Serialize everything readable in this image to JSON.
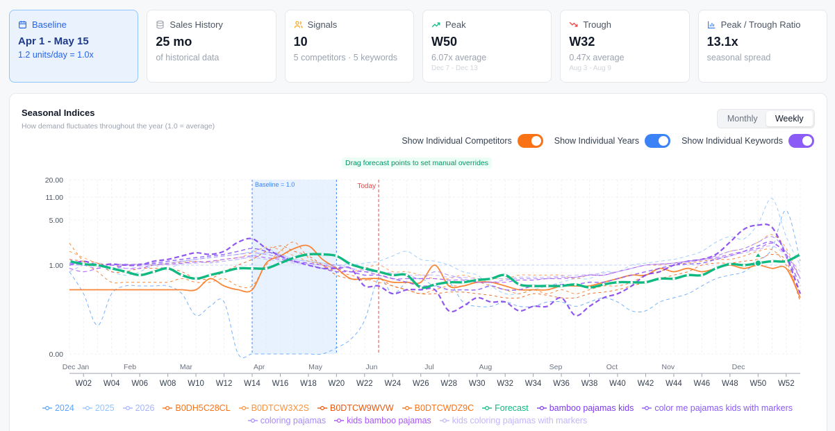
{
  "cards": [
    {
      "icon": "calendar-icon",
      "label": "Baseline",
      "value": "Apr 1 - May 15",
      "sub": "1.2 units/day = 1.0x",
      "tiny": "",
      "active": true
    },
    {
      "icon": "database-icon",
      "label": "Sales History",
      "value": "25 mo",
      "sub": "of historical data",
      "tiny": ""
    },
    {
      "icon": "users-icon",
      "label": "Signals",
      "value": "10",
      "sub": "5 competitors · 5 keywords",
      "tiny": ""
    },
    {
      "icon": "trend-up-icon",
      "label": "Peak",
      "value": "W50",
      "sub": "6.07x average",
      "tiny": "Dec 7 - Dec 13"
    },
    {
      "icon": "trend-down-icon",
      "label": "Trough",
      "value": "W32",
      "sub": "0.47x average",
      "tiny": "Aug 3 - Aug 9"
    },
    {
      "icon": "bar-chart-icon",
      "label": "Peak / Trough Ratio",
      "value": "13.1x",
      "sub": "seasonal spread",
      "tiny": ""
    }
  ],
  "panel": {
    "title": "Seasonal Indices",
    "subtitle": "How demand fluctuates throughout the year (1.0 = average)",
    "view_options": [
      "Monthly",
      "Weekly"
    ],
    "view_selected": "Weekly",
    "hint": "Drag forecast points to set manual overrides"
  },
  "toggles": [
    {
      "label": "Show Individual Competitors",
      "on": true,
      "color": "#f97316"
    },
    {
      "label": "Show Individual Years",
      "on": true,
      "color": "#3b82f6"
    },
    {
      "label": "Show Individual Keywords",
      "on": true,
      "color": "#8b5cf6"
    }
  ],
  "chart_data": {
    "type": "line",
    "y_scale": "symlog",
    "y_ticks": [
      "0.00",
      "1.00",
      "5.00",
      "11.00",
      "20.00"
    ],
    "y_tick_values": [
      0,
      1,
      5,
      11,
      20
    ],
    "month_labels": [
      "Dec Jan",
      "Feb",
      "Mar",
      "Apr",
      "May",
      "Jun",
      "Jul",
      "Aug",
      "Sep",
      "Oct",
      "Nov",
      "Dec"
    ],
    "month_weeks": [
      1.0,
      5.3,
      9.3,
      14.5,
      18.5,
      22.5,
      26.6,
      30.6,
      35.6,
      39.6,
      43.6,
      48.6
    ],
    "week_labels": [
      "W02",
      "W04",
      "W06",
      "W08",
      "W10",
      "W12",
      "W14",
      "W16",
      "W18",
      "W20",
      "W22",
      "W24",
      "W26",
      "W28",
      "W30",
      "W32",
      "W34",
      "W36",
      "W38",
      "W40",
      "W42",
      "W44",
      "W46",
      "W48",
      "W50",
      "W52"
    ],
    "baseline": {
      "label": "Baseline = 1.0",
      "from_week": 14,
      "to_week": 20
    },
    "today": {
      "label": "Today",
      "week": 23
    },
    "override_week": 50,
    "series": [
      {
        "name": "2024",
        "group": "year",
        "color": "#60a5fa",
        "dash": "5,4",
        "width": 1,
        "values": [
          0.9,
          0.6,
          0.25,
          0.6,
          0.7,
          0.7,
          0.7,
          0.7,
          0.6,
          0.35,
          0.45,
          0.5,
          0,
          0,
          0,
          0,
          0,
          0,
          0,
          0.05,
          0.12,
          0.3,
          0.8,
          0.6,
          0.75,
          0.8,
          0.7,
          0.75,
          0.5,
          0.45,
          0.45,
          0.5,
          0.45,
          0.45,
          0.5,
          0.5,
          0.45,
          0.5,
          0.55,
          0.5,
          0.4,
          0.4,
          0.5,
          0.55,
          0.6,
          0.7,
          0.8,
          0.85,
          0.9,
          1.2,
          2.0,
          7.0,
          1.2
        ]
      },
      {
        "name": "2025",
        "group": "year",
        "color": "#93c5fd",
        "dash": "5,4",
        "width": 1,
        "values": [
          1.3,
          1.1,
          1.0,
          0.9,
          0.85,
          0.9,
          1.0,
          1.1,
          1.2,
          1.3,
          1.4,
          1.5,
          1.6,
          1.8,
          2.0,
          1.6,
          1.3,
          1.2,
          1.1,
          1.0,
          1.0,
          1.1,
          1.2,
          1.5,
          1.8,
          1.3,
          1.2,
          1.0,
          0.9,
          0.85,
          0.7,
          0.6,
          0.6,
          0.65,
          0.7,
          0.75,
          0.8,
          0.8,
          0.9,
          0.9,
          1.0,
          1.1,
          1.2,
          1.3,
          1.5,
          1.8,
          2.5,
          3.0,
          2.8,
          4.5,
          10.5,
          3.0,
          1.0
        ]
      },
      {
        "name": "2026",
        "group": "year",
        "color": "#a5b4fc",
        "dash": "5,4",
        "width": 1,
        "values": [
          0.9,
          1.0,
          1.1,
          1.0,
          1.0,
          1.05,
          1.0,
          0.95,
          1.1,
          1.2,
          1.1,
          1.2,
          1.3,
          1.5,
          1.7,
          1.6,
          1.3,
          1.2,
          1.1,
          1.0,
          1.1
        ]
      },
      {
        "name": "B0DH5C28CL",
        "group": "competitor",
        "color": "#f97316",
        "dash": "4,4",
        "width": 1,
        "values": [
          2.4,
          1.2,
          0.9,
          0.75,
          0.75,
          0.75,
          0.75,
          0.75,
          0.8,
          0.75,
          0.75,
          0.8,
          0.7,
          0.7,
          1.0,
          1.8,
          2.5,
          1.4,
          1.0,
          0.9,
          0.85,
          0.8,
          0.75,
          0.7,
          0.65,
          0.6,
          0.65,
          0.7,
          0.7,
          0.75,
          0.7,
          0.65,
          0.6,
          0.65,
          0.6,
          0.65,
          0.6,
          0.65,
          0.7,
          0.7,
          0.75,
          0.85,
          0.9,
          1.0,
          1.1,
          1.2,
          1.3,
          1.3,
          1.5,
          1.8,
          1.9,
          1.0,
          0.6
        ]
      },
      {
        "name": "B0DTCW3X2S",
        "group": "competitor",
        "color": "#fb923c",
        "dash": "4,4",
        "width": 1,
        "values": [
          1.8,
          1.4,
          1.1,
          1.0,
          1.0,
          1.05,
          1.0,
          1.1,
          1.15,
          1.2,
          1.15,
          1.3,
          1.4,
          1.7,
          2.1,
          1.9,
          1.5,
          1.2,
          1.0,
          0.95,
          0.9,
          0.95,
          1.0,
          0.9,
          0.9,
          0.85,
          0.8,
          0.8,
          0.85,
          0.8,
          0.8,
          0.8,
          0.85,
          0.85,
          0.85,
          0.85,
          0.8,
          0.85,
          0.85,
          0.9,
          0.95,
          1.0,
          1.0,
          1.1,
          1.2,
          1.3,
          1.5,
          1.8,
          2.0,
          2.5,
          3.2,
          2.0,
          0.8
        ]
      },
      {
        "name": "B0DTCW9WVW",
        "group": "competitor",
        "color": "#ea580c",
        "dash": "4,4",
        "width": 1,
        "values": [
          1.3,
          1.2,
          1.1,
          0.9,
          0.9,
          0.95,
          0.95,
          0.95,
          0.9,
          0.8,
          0.8,
          0.9,
          1.0,
          1.3,
          1.8,
          2.2,
          1.8,
          1.5,
          1.0,
          0.85,
          0.8,
          0.78,
          0.8,
          0.7,
          0.65,
          0.6,
          0.6,
          0.62,
          0.62,
          0.6,
          0.58,
          0.55,
          0.55,
          0.6,
          0.58,
          0.55,
          0.55,
          0.6,
          0.62,
          0.65,
          0.7,
          0.75,
          0.8,
          0.85,
          0.9,
          1.0,
          1.1,
          1.1,
          1.2,
          1.3,
          1.6,
          1.2,
          0.5
        ]
      },
      {
        "name": "B0DTCWDZ9C",
        "group": "competitor",
        "color": "#f97316",
        "dash": "",
        "width": 1.8,
        "values": [
          0.65,
          0.65,
          0.65,
          0.65,
          0.65,
          0.65,
          0.65,
          0.65,
          0.65,
          0.65,
          0.8,
          0.7,
          0.65,
          0.65,
          1.1,
          1.5,
          2.0,
          2.2,
          1.3,
          0.95,
          0.8,
          0.8,
          0.8,
          0.75,
          0.75,
          0.75,
          1.0,
          0.7,
          0.7,
          0.75,
          0.75,
          0.7,
          0.65,
          0.65,
          0.65,
          0.7,
          0.7,
          0.7,
          0.75,
          0.8,
          0.85,
          0.85,
          0.95,
          0.9,
          0.95,
          0.9,
          0.95,
          1.0,
          0.95,
          1.0,
          0.95,
          0.95,
          0.55
        ]
      },
      {
        "name": "Forecast",
        "group": "forecast",
        "color": "#10b981",
        "dash": "",
        "width": 3.4,
        "values": [
          1.2,
          1.05,
          1.0,
          0.95,
          0.9,
          0.85,
          0.9,
          0.95,
          0.85,
          0.8,
          0.85,
          0.9,
          0.95,
          0.95,
          0.95,
          1.1,
          1.4,
          1.6,
          1.6,
          1.5,
          1.05,
          0.95,
          0.9,
          0.85,
          0.85,
          0.68,
          0.72,
          0.75,
          0.75,
          0.78,
          0.8,
          0.85,
          0.72,
          0.7,
          0.7,
          0.7,
          0.72,
          0.68,
          0.72,
          0.75,
          0.75,
          0.75,
          0.8,
          0.8,
          0.85,
          0.85,
          0.95,
          1.05,
          1.0,
          1.1,
          1.2,
          1.2,
          1.6
        ]
      },
      {
        "name": "bamboo pajamas kids",
        "group": "keyword",
        "color": "#7c3aed",
        "dash": "7,4",
        "width": 2.2,
        "values": [
          1.0,
          1.2,
          1.0,
          1.05,
          1.0,
          1.0,
          1.2,
          1.3,
          1.5,
          1.7,
          1.6,
          1.8,
          2.5,
          2.8,
          2.0,
          1.5,
          1.2,
          1.0,
          0.95,
          0.95,
          0.95,
          0.7,
          0.7,
          0.6,
          0.65,
          0.65,
          0.65,
          0.4,
          0.45,
          0.55,
          0.5,
          0.5,
          0.4,
          0.45,
          0.45,
          0.55,
          0.35,
          0.45,
          0.55,
          0.6,
          0.7,
          0.85,
          0.9,
          1.0,
          1.2,
          1.3,
          1.6,
          2.5,
          3.8,
          4.3,
          4.0,
          1.5,
          0.6
        ]
      },
      {
        "name": "color me pajamas kids with markers",
        "group": "keyword",
        "color": "#8b5cf6",
        "dash": "6,4",
        "width": 1.6,
        "values": [
          1.0,
          1.05,
          1.0,
          0.95,
          1.0,
          1.05,
          1.1,
          1.2,
          1.3,
          1.4,
          1.5,
          1.6,
          1.8,
          2.0,
          1.8,
          1.5,
          1.2,
          1.0,
          0.95,
          0.9,
          0.9,
          0.85,
          0.85,
          0.8,
          0.75,
          0.7,
          0.7,
          0.65,
          0.65,
          0.65,
          0.7,
          0.65,
          0.65,
          0.7,
          0.7,
          0.72,
          0.72,
          0.75,
          0.75,
          0.8,
          0.85,
          0.9,
          0.95,
          1.0,
          1.05,
          1.1,
          1.3,
          1.5,
          1.8,
          2.2,
          2.5,
          1.5,
          0.7
        ]
      },
      {
        "name": "coloring pajamas",
        "group": "keyword",
        "color": "#a78bfa",
        "dash": "6,4",
        "width": 1.2,
        "values": [
          1.1,
          1.0,
          0.95,
          1.0,
          1.05,
          1.0,
          1.05,
          1.1,
          1.2,
          1.3,
          1.4,
          1.5,
          1.6,
          1.7,
          1.6,
          1.4,
          1.2,
          1.1,
          1.0,
          1.0,
          0.95,
          0.9,
          0.9,
          0.85,
          0.85,
          0.8,
          0.9,
          0.85,
          0.8,
          0.75,
          0.75,
          0.78,
          0.8,
          0.8,
          0.8,
          0.82,
          0.82,
          0.85,
          0.85,
          0.9,
          0.95,
          1.0,
          1.05,
          1.1,
          1.2,
          1.3,
          1.5,
          1.8,
          2.0,
          2.5,
          3.0,
          1.8,
          0.8
        ]
      },
      {
        "name": "kids bamboo pajamas",
        "group": "keyword",
        "color": "#a855f7",
        "dash": "6,4",
        "width": 1.2,
        "values": [
          0.95,
          0.9,
          0.95,
          1.0,
          0.95,
          0.95,
          1.0,
          1.05,
          1.1,
          1.15,
          1.2,
          1.3,
          1.4,
          1.5,
          1.4,
          1.3,
          1.2,
          1.1,
          1.0,
          0.95,
          0.9,
          0.9,
          0.85,
          0.8,
          0.8,
          0.8,
          0.8,
          0.78,
          0.78,
          0.75,
          0.75,
          0.75,
          0.78,
          0.78,
          0.8,
          0.8,
          0.82,
          0.85,
          0.85,
          0.9,
          0.95,
          1.0,
          1.05,
          1.1,
          1.2,
          1.3,
          1.4,
          1.6,
          1.8,
          2.0,
          2.4,
          1.6,
          0.8
        ]
      },
      {
        "name": "kids coloring pajamas with markers",
        "group": "keyword",
        "color": "#c4b5fd",
        "dash": "6,4",
        "width": 1.2,
        "values": [
          1.0,
          1.0,
          0.98,
          0.96,
          0.95,
          0.97,
          1.0,
          1.02,
          1.05,
          1.1,
          1.15,
          1.2,
          1.3,
          1.4,
          1.3,
          1.2,
          1.1,
          1.05,
          1.0,
          0.98,
          0.95,
          0.92,
          0.9,
          0.88,
          0.85,
          0.85,
          0.85,
          0.82,
          0.82,
          0.8,
          0.8,
          0.8,
          0.82,
          0.82,
          0.82,
          0.84,
          0.85,
          0.86,
          0.88,
          0.9,
          0.95,
          1.0,
          1.05,
          1.1,
          1.15,
          1.25,
          1.35,
          1.5,
          1.7,
          1.9,
          2.2,
          1.5,
          0.9
        ]
      }
    ]
  }
}
